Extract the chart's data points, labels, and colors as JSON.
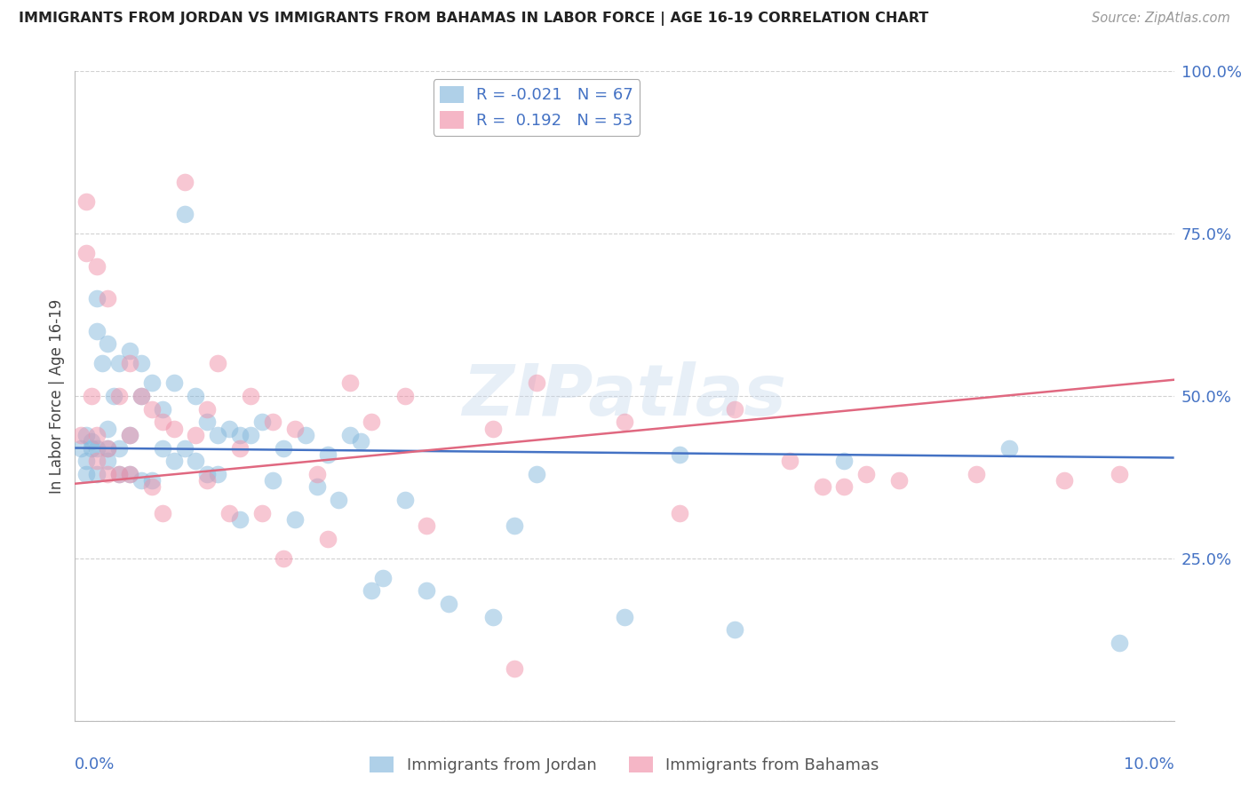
{
  "title": "IMMIGRANTS FROM JORDAN VS IMMIGRANTS FROM BAHAMAS IN LABOR FORCE | AGE 16-19 CORRELATION CHART",
  "source": "Source: ZipAtlas.com",
  "ylabel": "In Labor Force | Age 16-19",
  "ytick_values": [
    0.0,
    0.25,
    0.5,
    0.75,
    1.0
  ],
  "ytick_labels": [
    "",
    "25.0%",
    "50.0%",
    "75.0%",
    "100.0%"
  ],
  "xlim": [
    0,
    0.1
  ],
  "ylim": [
    0,
    1.0
  ],
  "jordan_label": "Immigrants from Jordan",
  "bahamas_label": "Immigrants from Bahamas",
  "jordan_color": "#85b8dc",
  "bahamas_color": "#f090a8",
  "jordan_line_color": "#4472c4",
  "bahamas_line_color": "#e06880",
  "jordan_R": -0.021,
  "jordan_N": 67,
  "bahamas_R": 0.192,
  "bahamas_N": 53,
  "watermark": "ZIPatlas",
  "background_color": "#ffffff",
  "grid_color": "#cccccc",
  "title_color": "#222222",
  "axis_label_color": "#4472c4",
  "jordan_line_x0": 0.0,
  "jordan_line_y0": 0.42,
  "jordan_line_x1": 0.1,
  "jordan_line_y1": 0.405,
  "bahamas_line_x0": 0.0,
  "bahamas_line_x1": 0.1,
  "bahamas_line_y0": 0.365,
  "bahamas_line_y1": 0.525,
  "jordan_scatter_x": [
    0.0005,
    0.001,
    0.001,
    0.001,
    0.0015,
    0.0015,
    0.002,
    0.002,
    0.002,
    0.002,
    0.0025,
    0.003,
    0.003,
    0.003,
    0.003,
    0.0035,
    0.004,
    0.004,
    0.004,
    0.005,
    0.005,
    0.005,
    0.006,
    0.006,
    0.006,
    0.007,
    0.007,
    0.008,
    0.008,
    0.009,
    0.009,
    0.01,
    0.01,
    0.011,
    0.011,
    0.012,
    0.012,
    0.013,
    0.013,
    0.014,
    0.015,
    0.015,
    0.016,
    0.017,
    0.018,
    0.019,
    0.02,
    0.021,
    0.022,
    0.023,
    0.024,
    0.025,
    0.026,
    0.027,
    0.028,
    0.03,
    0.032,
    0.034,
    0.038,
    0.04,
    0.042,
    0.05,
    0.055,
    0.06,
    0.07,
    0.085,
    0.095
  ],
  "jordan_scatter_y": [
    0.42,
    0.44,
    0.4,
    0.38,
    0.43,
    0.42,
    0.65,
    0.6,
    0.42,
    0.38,
    0.55,
    0.58,
    0.45,
    0.42,
    0.4,
    0.5,
    0.55,
    0.42,
    0.38,
    0.57,
    0.44,
    0.38,
    0.55,
    0.5,
    0.37,
    0.52,
    0.37,
    0.48,
    0.42,
    0.52,
    0.4,
    0.78,
    0.42,
    0.5,
    0.4,
    0.46,
    0.38,
    0.44,
    0.38,
    0.45,
    0.44,
    0.31,
    0.44,
    0.46,
    0.37,
    0.42,
    0.31,
    0.44,
    0.36,
    0.41,
    0.34,
    0.44,
    0.43,
    0.2,
    0.22,
    0.34,
    0.2,
    0.18,
    0.16,
    0.3,
    0.38,
    0.16,
    0.41,
    0.14,
    0.4,
    0.42,
    0.12
  ],
  "bahamas_scatter_x": [
    0.0005,
    0.001,
    0.001,
    0.0015,
    0.002,
    0.002,
    0.002,
    0.003,
    0.003,
    0.003,
    0.004,
    0.004,
    0.005,
    0.005,
    0.005,
    0.006,
    0.007,
    0.007,
    0.008,
    0.008,
    0.009,
    0.01,
    0.011,
    0.012,
    0.012,
    0.013,
    0.014,
    0.015,
    0.016,
    0.017,
    0.018,
    0.019,
    0.02,
    0.022,
    0.023,
    0.025,
    0.027,
    0.03,
    0.032,
    0.038,
    0.04,
    0.042,
    0.05,
    0.055,
    0.06,
    0.065,
    0.068,
    0.07,
    0.072,
    0.075,
    0.082,
    0.09,
    0.095
  ],
  "bahamas_scatter_y": [
    0.44,
    0.8,
    0.72,
    0.5,
    0.7,
    0.44,
    0.4,
    0.65,
    0.42,
    0.38,
    0.5,
    0.38,
    0.55,
    0.44,
    0.38,
    0.5,
    0.48,
    0.36,
    0.46,
    0.32,
    0.45,
    0.83,
    0.44,
    0.48,
    0.37,
    0.55,
    0.32,
    0.42,
    0.5,
    0.32,
    0.46,
    0.25,
    0.45,
    0.38,
    0.28,
    0.52,
    0.46,
    0.5,
    0.3,
    0.45,
    0.08,
    0.52,
    0.46,
    0.32,
    0.48,
    0.4,
    0.36,
    0.36,
    0.38,
    0.37,
    0.38,
    0.37,
    0.38
  ]
}
